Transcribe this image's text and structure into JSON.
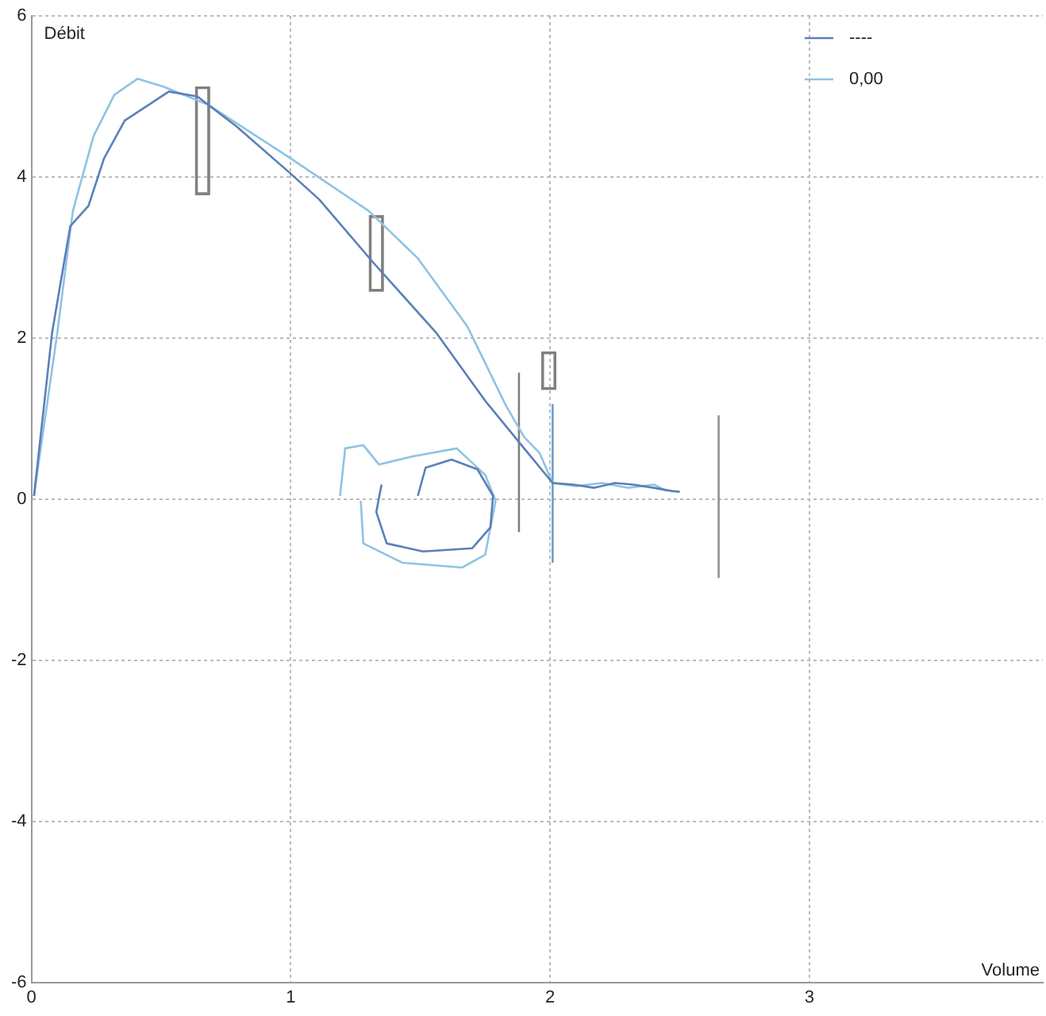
{
  "chart_data": {
    "type": "line",
    "xlabel": "Volume",
    "ylabel": "Débit",
    "xlim": [
      0,
      3.9
    ],
    "xticks": [
      0,
      1,
      2,
      3
    ],
    "ylim": [
      -6,
      6
    ],
    "yticks": [
      -6,
      -4,
      -2,
      0,
      2,
      4,
      6
    ],
    "grid": true,
    "legend": "top right",
    "marker": "none",
    "line_style": "solid",
    "series": [
      {
        "name": "----",
        "color": "#5b7fb8",
        "x": [
          0.01,
          0.08,
          0.15,
          0.22,
          0.28,
          0.36,
          0.53,
          0.64,
          0.79,
          1.0,
          1.11,
          1.32,
          1.56,
          1.75,
          1.9,
          2.01,
          2.09,
          2.17,
          2.25,
          2.32,
          2.4,
          2.47,
          2.5
        ],
        "values": [
          0.04,
          2.07,
          3.39,
          3.64,
          4.23,
          4.7,
          5.06,
          5.0,
          4.63,
          4.04,
          3.72,
          2.93,
          2.07,
          1.22,
          0.63,
          0.2,
          0.18,
          0.14,
          0.2,
          0.18,
          0.14,
          0.1,
          0.09
        ]
      },
      {
        "name": "0,00",
        "color": "#8ec3e3",
        "x": [
          0.01,
          0.1,
          0.16,
          0.24,
          0.32,
          0.41,
          0.51,
          0.68,
          1.0,
          1.3,
          1.49,
          1.68,
          1.83,
          1.9,
          1.96,
          2.01,
          2.1,
          2.2,
          2.3,
          2.4,
          2.45
        ],
        "values": [
          0.04,
          2.07,
          3.58,
          4.51,
          5.02,
          5.22,
          5.12,
          4.9,
          4.23,
          3.58,
          2.99,
          2.15,
          1.16,
          0.77,
          0.57,
          0.2,
          0.16,
          0.2,
          0.14,
          0.18,
          0.1
        ]
      },
      {
        "color": "#5b7fb8",
        "x": [
          1.49,
          1.52,
          1.62,
          1.72,
          1.78,
          1.77,
          1.7,
          1.51,
          1.37,
          1.33,
          1.35
        ],
        "values": [
          0.04,
          0.39,
          0.49,
          0.37,
          0.04,
          -0.35,
          -0.61,
          -0.65,
          -0.55,
          -0.16,
          0.18
        ]
      },
      {
        "color": "#8ec3e3",
        "x": [
          1.19,
          1.21,
          1.28,
          1.34,
          1.47,
          1.64,
          1.75,
          1.79,
          1.75,
          1.66,
          1.43,
          1.28,
          1.27
        ],
        "values": [
          0.04,
          0.63,
          0.67,
          0.43,
          0.53,
          0.63,
          0.3,
          -0.02,
          -0.69,
          -0.85,
          -0.79,
          -0.55,
          -0.02
        ]
      },
      {
        "color": "#808080",
        "x": [
          1.88,
          1.88
        ],
        "values": [
          -0.41,
          1.57
        ]
      },
      {
        "color": "#6a9fd0",
        "x": [
          2.01,
          2.01
        ],
        "values": [
          -0.79,
          1.18
        ]
      },
      {
        "color": "#909090",
        "x": [
          2.65,
          2.65
        ],
        "values": [
          -0.98,
          1.04
        ]
      },
      {
        "type": "bar",
        "color": "#808080",
        "x": [
          0.66,
          1.33,
          1.995
        ],
        "base": [
          3.78,
          2.58,
          1.36
        ],
        "values": [
          1.34,
          0.94,
          0.47
        ]
      }
    ]
  }
}
